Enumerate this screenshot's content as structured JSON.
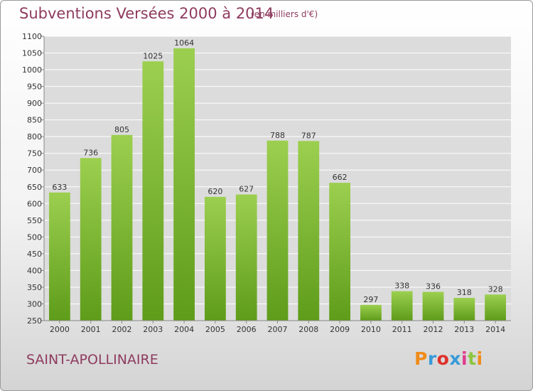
{
  "header": {
    "title": "Subventions Versées 2000 à 2014",
    "subtitle": "(en milliers d'€)"
  },
  "footer": {
    "commune": "SAINT-APOLLINAIRE",
    "logo": "Proxiti",
    "logo_colors": [
      "#f08c1a",
      "#3a9ad9",
      "#e0302a",
      "#3a9ad9",
      "#e03a8c",
      "#8cc63f",
      "#f08c1a"
    ]
  },
  "colors": {
    "bar_top": "#9ccf4f",
    "bar_bottom": "#5e9c1a",
    "title": "#8e3b5e",
    "grid": "#ffffff",
    "plot_bg": "#dcdcdc"
  },
  "chart_data": {
    "type": "bar",
    "title": "Subventions Versées 2000 à 2014",
    "subtitle": "(en milliers d'€)",
    "categories": [
      "2000",
      "2001",
      "2002",
      "2003",
      "2004",
      "2005",
      "2006",
      "2007",
      "2008",
      "2009",
      "2010",
      "2011",
      "2012",
      "2013",
      "2014"
    ],
    "values": [
      633,
      736,
      805,
      1025,
      1064,
      620,
      627,
      788,
      787,
      662,
      297,
      338,
      336,
      318,
      328
    ],
    "ylim": [
      250,
      1100
    ],
    "yticks": [
      250,
      300,
      350,
      400,
      450,
      500,
      550,
      600,
      650,
      700,
      750,
      800,
      850,
      900,
      950,
      1000,
      1050,
      1100
    ],
    "grid": true,
    "data_labels": true
  }
}
